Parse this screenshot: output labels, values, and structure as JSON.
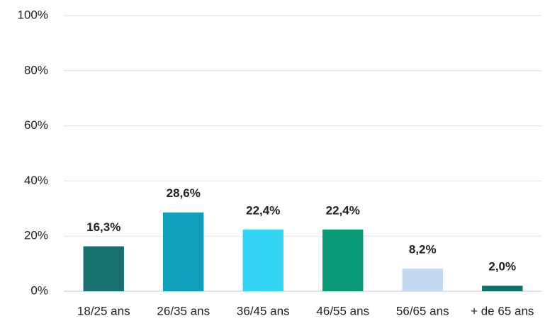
{
  "chart_data": {
    "type": "bar",
    "categories": [
      "18/25 ans",
      "26/35 ans",
      "36/45 ans",
      "46/55 ans",
      "56/65 ans",
      "+ de 65 ans"
    ],
    "values": [
      16.3,
      28.6,
      22.4,
      22.4,
      8.2,
      2.0
    ],
    "value_labels": [
      "16,3%",
      "28,6%",
      "22,4%",
      "22,4%",
      "8,2%",
      "2,0%"
    ],
    "colors": [
      "#17706e",
      "#0e9fba",
      "#33d6f5",
      "#0a9a78",
      "#c5d9f1",
      "#0d7167"
    ],
    "ylim": [
      0,
      100
    ],
    "yticks": [
      {
        "value": 0,
        "label": "0%"
      },
      {
        "value": 20,
        "label": "20%"
      },
      {
        "value": 40,
        "label": "40%"
      },
      {
        "value": 60,
        "label": "60%"
      },
      {
        "value": 80,
        "label": "80%"
      },
      {
        "value": 100,
        "label": "100%"
      }
    ],
    "grid": true
  }
}
